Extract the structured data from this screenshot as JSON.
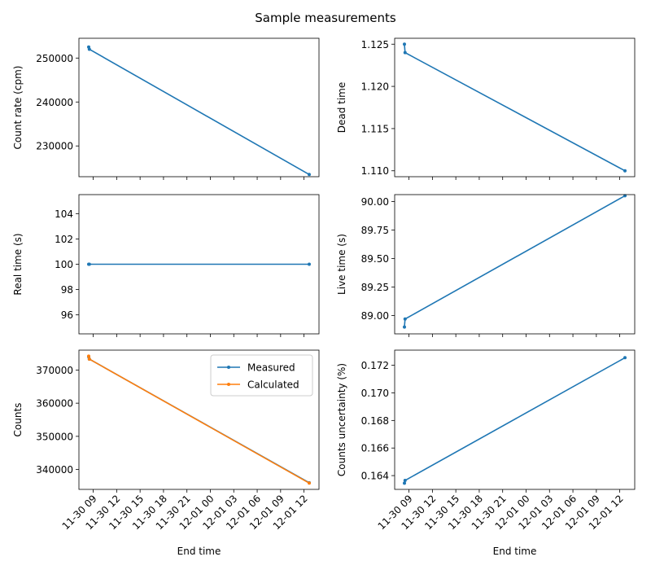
{
  "figure": {
    "title": "Sample measurements"
  },
  "chart_data": [
    {
      "id": "count-rate",
      "type": "line",
      "ylabel": "Count rate (cpm)",
      "xlabel": "",
      "show_xticklabels": false,
      "ylim": [
        223000,
        254500
      ],
      "yticks": [
        230000,
        240000,
        250000
      ],
      "ytick_labels": [
        "230000",
        "240000",
        "250000"
      ],
      "series": [
        {
          "x": [
            "2024-11-30 08:25",
            "2024-11-30 08:30",
            "2024-12-01 12:40"
          ],
          "values": [
            252500,
            252000,
            223500
          ]
        }
      ]
    },
    {
      "id": "dead-time",
      "type": "line",
      "ylabel": "Dead time",
      "xlabel": "",
      "show_xticklabels": false,
      "ylim": [
        1.1093,
        1.1257
      ],
      "yticks": [
        1.11,
        1.115,
        1.12,
        1.125
      ],
      "ytick_labels": [
        "1.110",
        "1.115",
        "1.120",
        "1.125"
      ],
      "series": [
        {
          "x": [
            "2024-11-30 08:25",
            "2024-11-30 08:30",
            "2024-12-01 12:40"
          ],
          "values": [
            1.125,
            1.124,
            1.11
          ]
        }
      ]
    },
    {
      "id": "real-time",
      "type": "line",
      "ylabel": "Real time (s)",
      "xlabel": "",
      "show_xticklabels": false,
      "ylim": [
        94.5,
        105.5
      ],
      "yticks": [
        96,
        98,
        100,
        102,
        104
      ],
      "ytick_labels": [
        "96",
        "98",
        "100",
        "102",
        "104"
      ],
      "series": [
        {
          "x": [
            "2024-11-30 08:25",
            "2024-11-30 08:30",
            "2024-12-01 12:40"
          ],
          "values": [
            100,
            100,
            100
          ]
        }
      ]
    },
    {
      "id": "live-time",
      "type": "line",
      "ylabel": "Live time (s)",
      "xlabel": "",
      "show_xticklabels": false,
      "ylim": [
        88.84,
        90.06
      ],
      "yticks": [
        89.0,
        89.25,
        89.5,
        89.75,
        90.0
      ],
      "ytick_labels": [
        "89.00",
        "89.25",
        "89.50",
        "89.75",
        "90.00"
      ],
      "series": [
        {
          "x": [
            "2024-11-30 08:25",
            "2024-11-30 08:30",
            "2024-12-01 12:40"
          ],
          "values": [
            88.9,
            88.97,
            90.05
          ]
        }
      ]
    },
    {
      "id": "counts",
      "type": "line",
      "ylabel": "Counts",
      "xlabel": "End time",
      "show_xticklabels": true,
      "ylim": [
        334000,
        376000
      ],
      "yticks": [
        340000,
        350000,
        360000,
        370000
      ],
      "ytick_labels": [
        "340000",
        "350000",
        "360000",
        "370000"
      ],
      "legend": "top-right",
      "series": [
        {
          "name": "Measured",
          "color": "#1f77b4",
          "x": [
            "2024-11-30 08:25",
            "2024-11-30 08:30",
            "2024-12-01 12:40"
          ],
          "values": [
            374000,
            373300,
            336000
          ]
        },
        {
          "name": "Calculated",
          "color": "#ff7f0e",
          "x": [
            "2024-11-30 08:25",
            "2024-11-30 08:30",
            "2024-12-01 12:40"
          ],
          "values": [
            374200,
            373300,
            335900
          ]
        }
      ]
    },
    {
      "id": "counts-uncertainty",
      "type": "line",
      "ylabel": "Counts uncertainty (%)",
      "xlabel": "End time",
      "show_xticklabels": true,
      "ylim": [
        0.163,
        0.1731
      ],
      "yticks": [
        0.164,
        0.166,
        0.168,
        0.17,
        0.172
      ],
      "ytick_labels": [
        "0.164",
        "0.166",
        "0.168",
        "0.170",
        "0.172"
      ],
      "series": [
        {
          "x": [
            "2024-11-30 08:25",
            "2024-11-30 08:30",
            "2024-12-01 12:40"
          ],
          "values": [
            0.16345,
            0.16365,
            0.17255
          ]
        }
      ]
    }
  ],
  "xaxis": {
    "xlim": [
      "2024-11-30 07:10",
      "2024-12-01 13:55"
    ],
    "ticks": [
      "2024-11-30 09:00",
      "2024-11-30 12:00",
      "2024-11-30 15:00",
      "2024-11-30 18:00",
      "2024-11-30 21:00",
      "2024-12-01 00:00",
      "2024-12-01 03:00",
      "2024-12-01 06:00",
      "2024-12-01 09:00",
      "2024-12-01 12:00"
    ],
    "tick_labels": [
      "11-30 09",
      "11-30 12",
      "11-30 15",
      "11-30 18",
      "11-30 21",
      "12-01 00",
      "12-01 03",
      "12-01 06",
      "12-01 09",
      "12-01 12"
    ]
  },
  "colors": {
    "series_default": "#1f77b4",
    "axes": "#000000",
    "background": "#ffffff"
  }
}
